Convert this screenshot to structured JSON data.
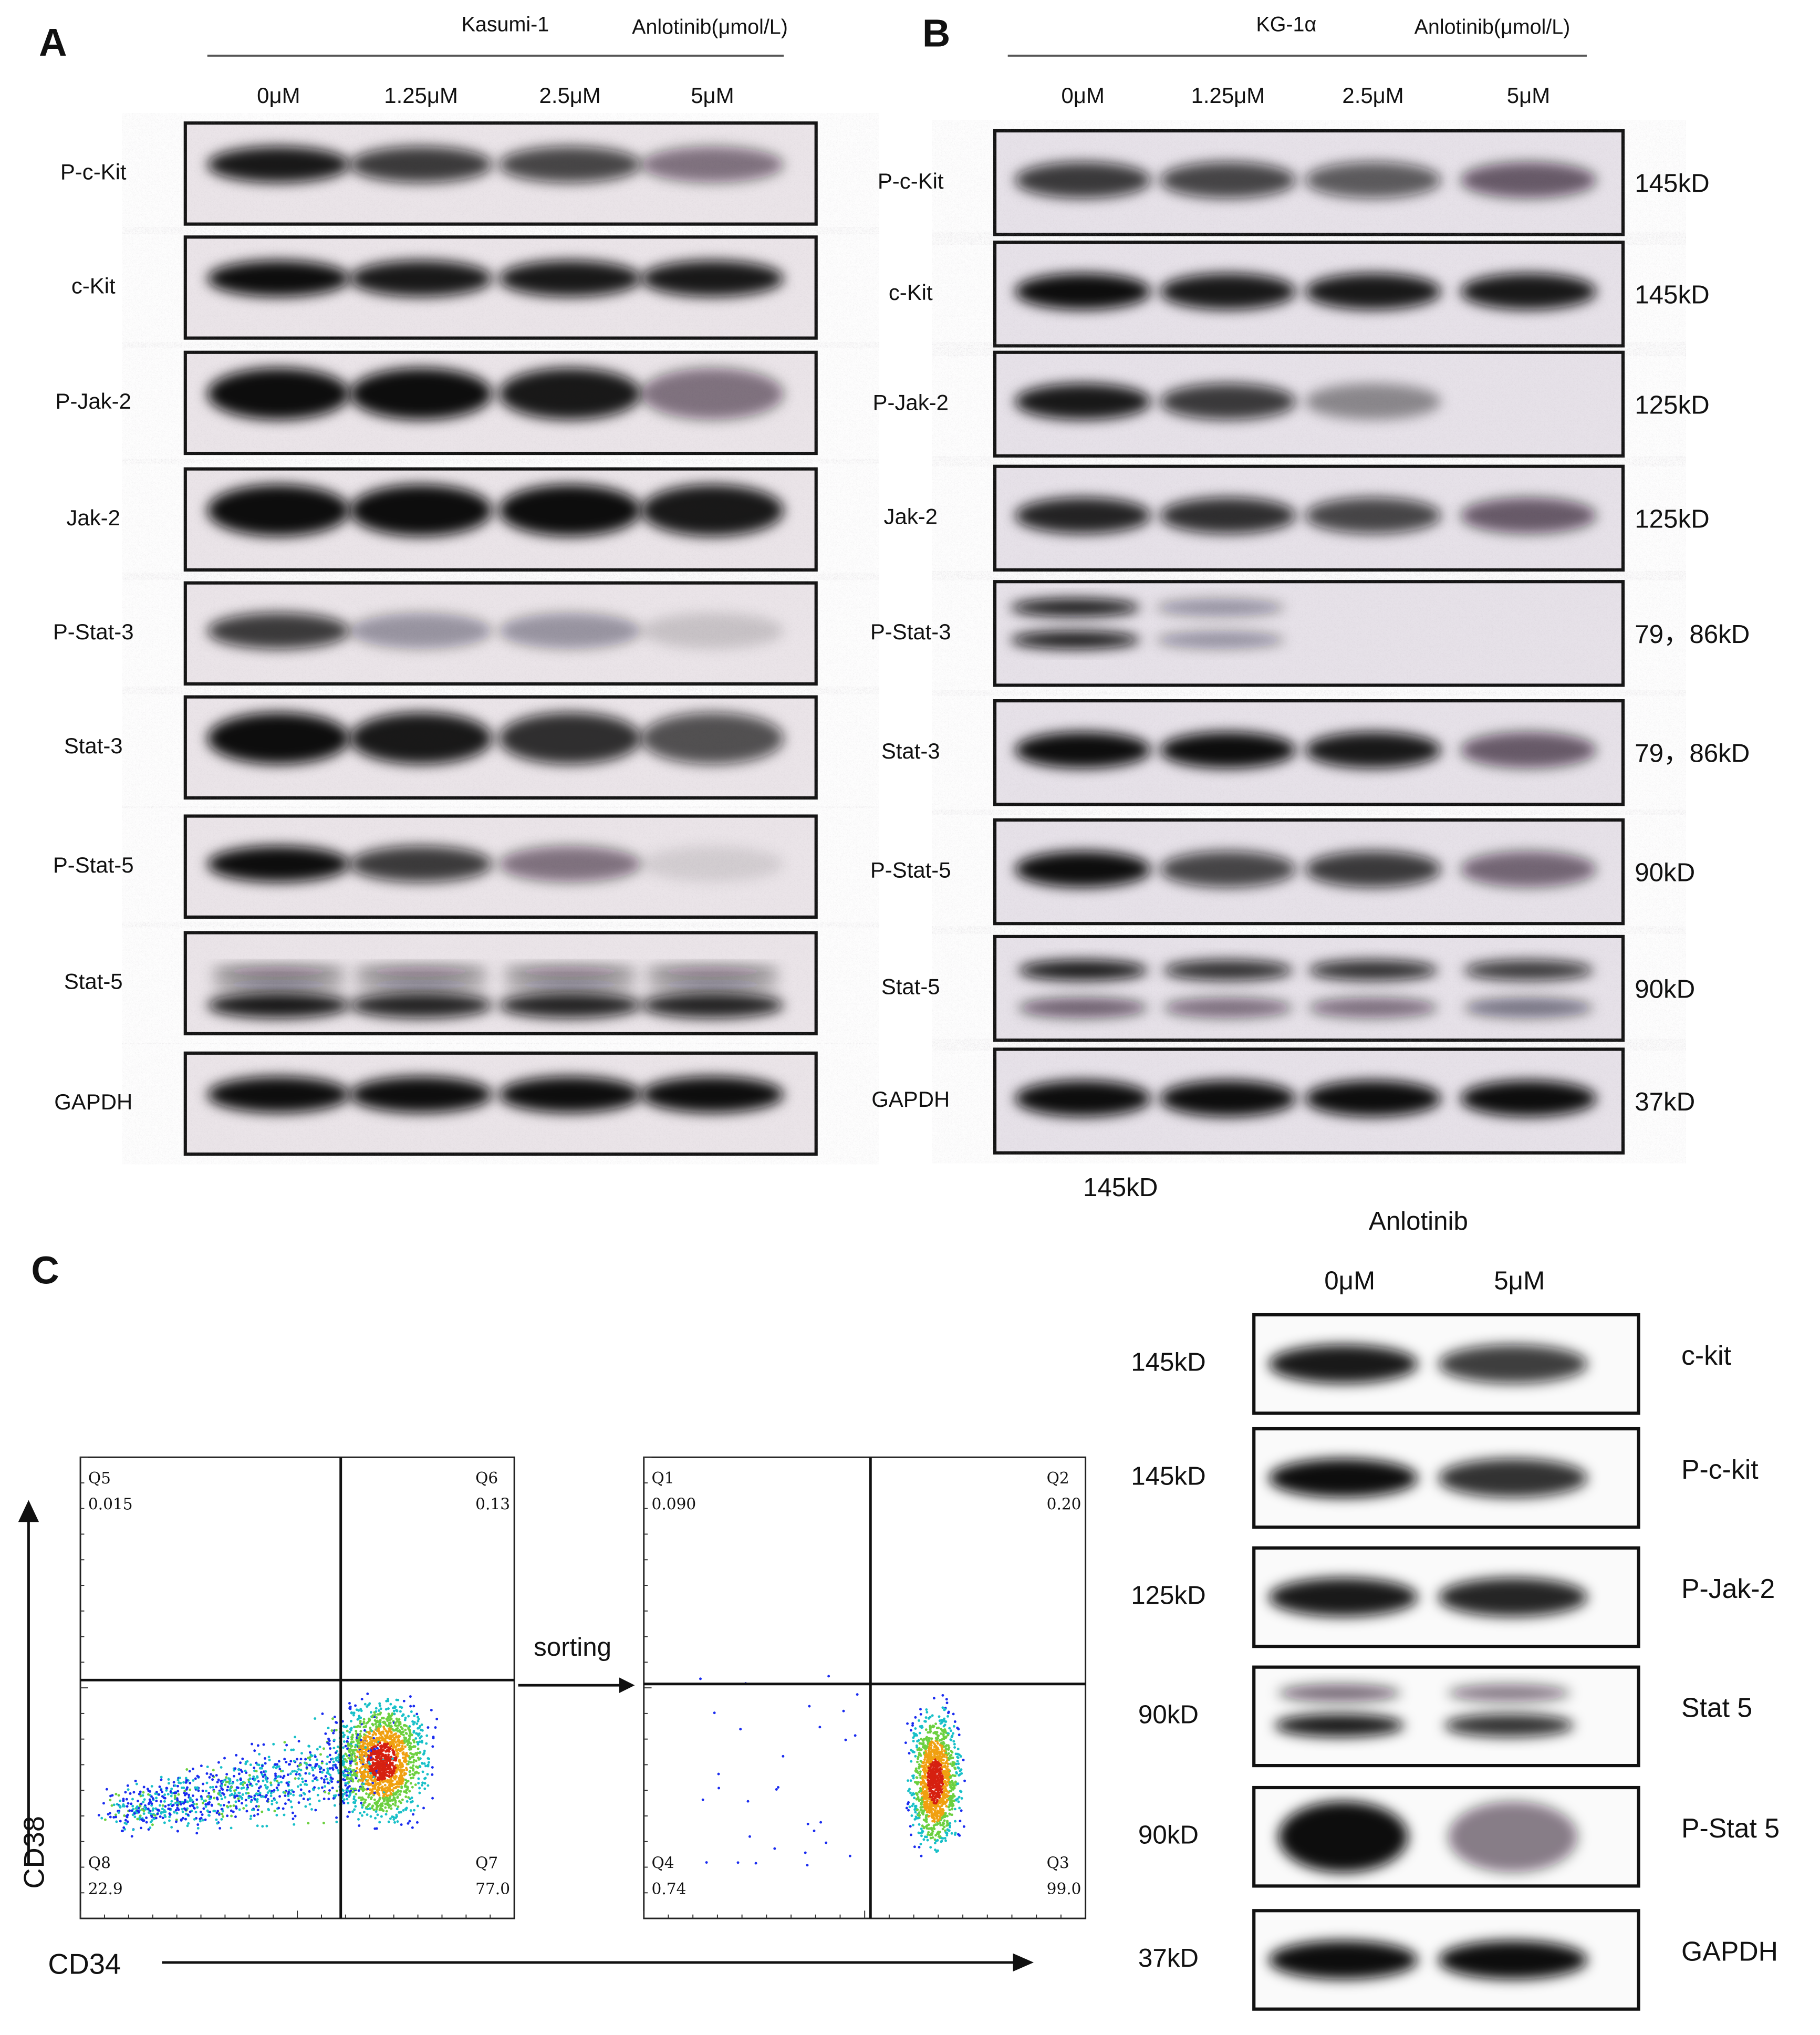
{
  "panel_a": {
    "label": "A",
    "cell_line": "Kasumi-1",
    "treatment": "Anlotinib(μmol/L)",
    "doses": [
      "0μM",
      "1.25μM",
      "2.5μM",
      "5μM"
    ],
    "rows": [
      "P-c-Kit",
      "c-Kit",
      "P-Jak-2",
      "Jak-2",
      "P-Stat-3",
      "Stat-3",
      "P-Stat-5",
      "Stat-5",
      "GAPDH"
    ]
  },
  "panel_b": {
    "label": "B",
    "cell_line": "KG-1α",
    "treatment": "Anlotinib(μmol/L)",
    "doses": [
      "0μM",
      "1.25μM",
      "2.5μM",
      "5μM"
    ],
    "rows": [
      "P-c-Kit",
      "c-Kit",
      "P-Jak-2",
      "Jak-2",
      "P-Stat-3",
      "Stat-3",
      "P-Stat-5",
      "Stat-5",
      "GAPDH"
    ],
    "weights": [
      "145kD",
      "145kD",
      "125kD",
      "125kD",
      "79，86kD",
      "79，86kD",
      "90kD",
      "90kD",
      "37kD"
    ],
    "stray_weight": "145kD"
  },
  "panel_c": {
    "label": "C",
    "y_axis": "CD38",
    "x_axis": "CD34",
    "arrow_label": "sorting",
    "plot_before": {
      "quadrants": [
        {
          "name": "Q5",
          "value": "0.015"
        },
        {
          "name": "Q6",
          "value": "0.13"
        },
        {
          "name": "Q8",
          "value": "22.9"
        },
        {
          "name": "Q7",
          "value": "77.0"
        }
      ]
    },
    "plot_after": {
      "quadrants": [
        {
          "name": "Q1",
          "value": "0.090"
        },
        {
          "name": "Q2",
          "value": "0.20"
        },
        {
          "name": "Q4",
          "value": "0.74"
        },
        {
          "name": "Q3",
          "value": "99.0"
        }
      ]
    },
    "blot": {
      "treatment": "Anlotinib",
      "doses": [
        "0μM",
        "5μM"
      ],
      "weights": [
        "145kD",
        "145kD",
        "125kD",
        "90kD",
        "90kD",
        "37kD"
      ],
      "rows": [
        "c-kit",
        "P-c-kit",
        "P-Jak-2",
        "Stat 5",
        "P-Stat 5",
        "GAPDH"
      ]
    }
  }
}
